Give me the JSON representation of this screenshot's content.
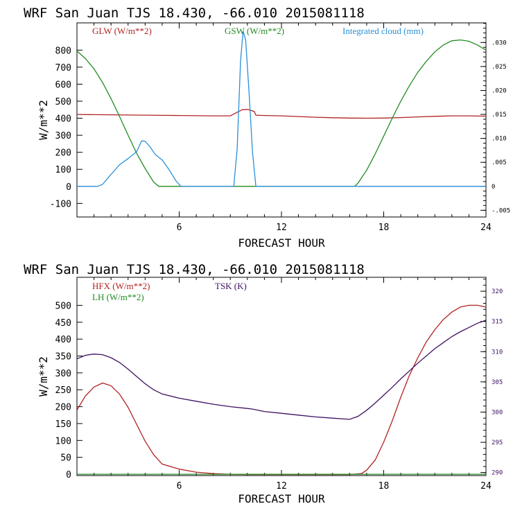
{
  "chart_data": [
    {
      "type": "line",
      "title": "WRF  San Juan TJS  18.430, -66.010  2015081118",
      "xlabel": "FORECAST HOUR",
      "ylabel": "W/m**2",
      "xlim": [
        0,
        24
      ],
      "ylim": [
        -180,
        960
      ],
      "y2lim": [
        -0.0064,
        0.0341
      ],
      "xticks": [
        "6",
        "12",
        "18",
        "24"
      ],
      "yticks": [
        "-100",
        "0",
        "100",
        "200",
        "300",
        "400",
        "500",
        "600",
        "700",
        "800"
      ],
      "y2ticks": [
        "-.005",
        "0",
        ".005",
        ".010",
        ".015",
        ".020",
        ".025",
        ".030"
      ],
      "y2tick_values": [
        -0.005,
        0,
        0.005,
        0.01,
        0.015,
        0.02,
        0.025,
        0.03
      ],
      "grid": false,
      "legend_placement": "top",
      "series": [
        {
          "name": "GLW (W/m**2)",
          "color": "#b22222",
          "axis": "left",
          "x": [
            0,
            1,
            2,
            3,
            4,
            5,
            6,
            7,
            8,
            9,
            9.5,
            9.7,
            10,
            10.4,
            10.5,
            11,
            12,
            13,
            14,
            15,
            16,
            17,
            18,
            19,
            20,
            21,
            22,
            23,
            24
          ],
          "y": [
            422,
            421,
            420,
            419,
            418,
            417,
            416,
            415,
            414,
            414,
            440,
            450,
            452,
            440,
            418,
            416,
            414,
            410,
            406,
            403,
            401,
            400,
            401,
            404,
            408,
            411,
            414,
            414,
            412
          ]
        },
        {
          "name": "GSW (W/m**2)",
          "color": "#228b22",
          "axis": "left",
          "x": [
            0,
            0.5,
            1,
            1.5,
            2,
            2.5,
            3,
            3.5,
            4,
            4.5,
            4.8,
            16.3,
            16.5,
            17,
            17.5,
            18,
            18.5,
            19,
            19.5,
            20,
            20.5,
            21,
            21.5,
            22,
            22.5,
            23,
            23.5,
            24
          ],
          "y": [
            795,
            750,
            690,
            610,
            515,
            410,
            300,
            195,
            105,
            25,
            0,
            0,
            20,
            95,
            190,
            295,
            400,
            500,
            590,
            670,
            735,
            790,
            830,
            855,
            860,
            852,
            830,
            800
          ]
        },
        {
          "name": "Integrated cloud (mm)",
          "color": "#2a8fd8",
          "axis": "right",
          "x": [
            0,
            1.2,
            1.5,
            2,
            2.5,
            3,
            3.5,
            3.8,
            4,
            4.3,
            4.6,
            5,
            5.4,
            5.8,
            6.1,
            9.2,
            9.4,
            9.6,
            9.75,
            9.9,
            10.1,
            10.3,
            10.5,
            24
          ],
          "y": [
            0,
            0,
            0.0004,
            0.0025,
            0.0045,
            0.0058,
            0.0072,
            0.0095,
            0.0094,
            0.0082,
            0.0066,
            0.0055,
            0.0035,
            0.0012,
            0,
            0,
            0.0078,
            0.0262,
            0.0324,
            0.0305,
            0.0195,
            0.0072,
            0,
            0
          ]
        }
      ]
    },
    {
      "type": "line",
      "title": "WRF  San Juan TJS  18.430, -66.010  2015081118",
      "xlabel": "FORECAST HOUR",
      "ylabel": "W/m**2",
      "xlim": [
        0,
        24
      ],
      "ylim": [
        -4,
        583
      ],
      "y2lim": [
        289.5,
        322.3
      ],
      "xticks": [
        "6",
        "12",
        "18",
        "24"
      ],
      "yticks": [
        "0",
        "50",
        "100",
        "150",
        "200",
        "250",
        "300",
        "350",
        "400",
        "450",
        "500"
      ],
      "y2ticks": [
        "290",
        "295",
        "300",
        "305",
        "310",
        "315",
        "320"
      ],
      "y2tick_values": [
        290,
        295,
        300,
        305,
        310,
        315,
        320
      ],
      "grid": false,
      "legend_placement": "top-left",
      "series": [
        {
          "name": "HFX (W/m**2)",
          "color": "#b22222",
          "axis": "left",
          "x": [
            0,
            0.5,
            1,
            1.5,
            2,
            2.5,
            3,
            3.5,
            4,
            4.5,
            5,
            6,
            7,
            8,
            9,
            10,
            11,
            12,
            13,
            14,
            15,
            16,
            16.7,
            17,
            17.5,
            18,
            18.5,
            19,
            19.5,
            20,
            20.5,
            21,
            21.5,
            22,
            22.5,
            23,
            23.5,
            24
          ],
          "y": [
            190,
            232,
            258,
            270,
            262,
            237,
            198,
            148,
            98,
            58,
            30,
            15,
            6,
            2,
            0,
            -1,
            -1,
            -1,
            -1,
            -1,
            -1,
            -1,
            2,
            12,
            42,
            95,
            158,
            228,
            292,
            345,
            392,
            428,
            458,
            480,
            495,
            500,
            500,
            495
          ]
        },
        {
          "name": "LH  (W/m**2)",
          "color": "#228b22",
          "axis": "left",
          "x": [
            0,
            24
          ],
          "y": [
            0,
            0
          ]
        },
        {
          "name": "TSK (K)",
          "color": "#3d1060",
          "axis": "right",
          "x": [
            0,
            0.5,
            1,
            1.5,
            2,
            2.5,
            3,
            3.5,
            4,
            4.5,
            5,
            6,
            7,
            8,
            9,
            10,
            10.3,
            11,
            12,
            13,
            14,
            15,
            16,
            16.5,
            17,
            17.5,
            18,
            18.5,
            19,
            19.5,
            20,
            20.5,
            21,
            21.5,
            22,
            22.5,
            23,
            23.5,
            24
          ],
          "y": [
            308.8,
            309.4,
            309.6,
            309.5,
            309.0,
            308.2,
            307.1,
            305.9,
            304.7,
            303.7,
            303.0,
            302.3,
            301.8,
            301.3,
            300.9,
            300.6,
            300.5,
            300.1,
            299.8,
            299.5,
            299.2,
            299.0,
            298.8,
            299.3,
            300.3,
            301.5,
            302.8,
            304.1,
            305.5,
            306.8,
            308.1,
            309.3,
            310.5,
            311.5,
            312.5,
            313.3,
            314.0,
            314.7,
            315.2
          ]
        }
      ]
    }
  ]
}
